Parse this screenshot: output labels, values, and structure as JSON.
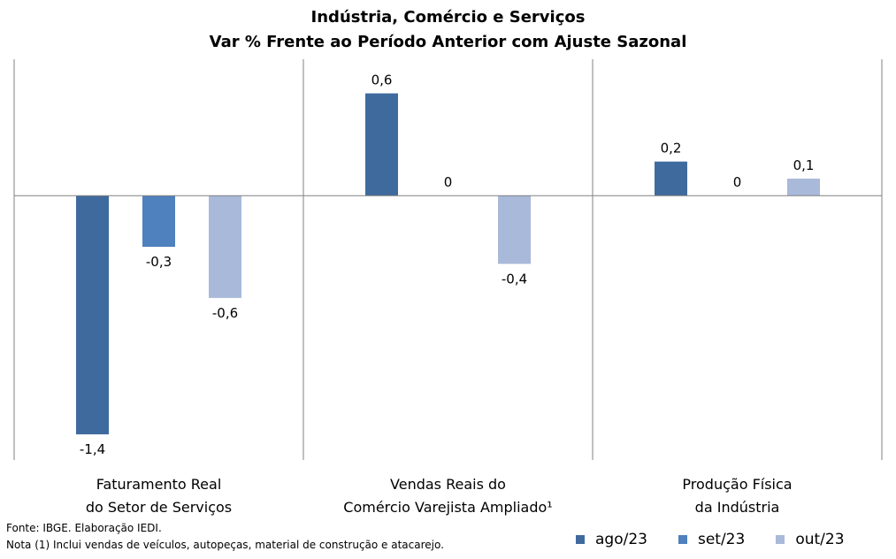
{
  "chart_data": {
    "type": "bar",
    "title": "Indústria, Comércio e Serviços",
    "subtitle": "Var % Frente ao Período Anterior com Ajuste Sazonal",
    "categories": [
      [
        "Faturamento Real",
        "do Setor de Serviços"
      ],
      [
        "Vendas Reais do",
        "Comércio Varejista Ampliado¹"
      ],
      [
        "Produção Física",
        "da Indústria"
      ]
    ],
    "series": [
      {
        "name": "ago/23",
        "color": "#3F6A9E",
        "values": [
          -1.4,
          0.6,
          0.2
        ],
        "labels": [
          "-1,4",
          "0,6",
          "0,2"
        ]
      },
      {
        "name": "set/23",
        "color": "#4E81BD",
        "values": [
          -0.3,
          0,
          0
        ],
        "labels": [
          "-0,3",
          "0",
          "0"
        ]
      },
      {
        "name": "out/23",
        "color": "#A9B9D9",
        "values": [
          -0.6,
          -0.4,
          0.1
        ],
        "labels": [
          "-0,6",
          "-0,4",
          "0,1"
        ]
      }
    ],
    "xlabel": "",
    "ylabel": "",
    "ylim": [
      -1.55,
      0.8
    ],
    "grid": false,
    "legend_position": "bottom-right"
  },
  "notes": {
    "source": "Fonte: IBGE. Elaboração IEDI.",
    "note": "Nota (1) Inclui vendas de veículos, autopeças, material de construção e atacarejo."
  }
}
